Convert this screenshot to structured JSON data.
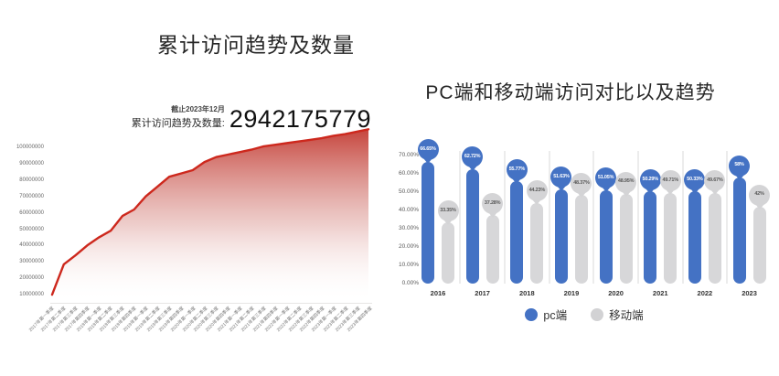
{
  "page": {
    "background": "#ffffff"
  },
  "colors": {
    "area_line": "#cd281d",
    "area_fill_top": "#c2372e",
    "pc_blue": "#4472c4",
    "mobile_gray": "#d7d7d9"
  },
  "chart_data": [
    {
      "id": "cumulative-visits",
      "type": "area",
      "title": "累计访问趋势及数量",
      "stat_caption_line1": "截止2023年12月",
      "stat_caption_line2": "累计访问趋势及数量:",
      "stat_value": "2942175779",
      "ylabel": "",
      "xlabel": "",
      "grid": false,
      "legend_position": "none",
      "ylim": [
        0,
        115000000
      ],
      "y_ticks": [
        "100000000",
        "90000000",
        "80000000",
        "70000000",
        "60000000",
        "50000000",
        "40000000",
        "30000000",
        "20000000",
        "10000000"
      ],
      "x": [
        "2017年第一季度",
        "2017年第二季度",
        "2017年第三季度",
        "2017年第四季度",
        "2018年第一季度",
        "2018年第二季度",
        "2018年第三季度",
        "2018年第四季度",
        "2019年第一季度",
        "2019年第二季度",
        "2019年第三季度",
        "2019年第四季度",
        "2020年第一季度",
        "2020年第二季度",
        "2020年第三季度",
        "2020年第四季度",
        "2021年第一季度",
        "2021年第二季度",
        "2021年第三季度",
        "2021年第四季度",
        "2022年第一季度",
        "2022年第二季度",
        "2022年第三季度",
        "2022年第四季度",
        "2023年第一季度",
        "2023年第二季度",
        "2023年第三季度",
        "2023年第四季度"
      ],
      "values": [
        10000000,
        28500000,
        34000000,
        40000000,
        45000000,
        49000000,
        58000000,
        62000000,
        70000000,
        76000000,
        82000000,
        84000000,
        86000000,
        91000000,
        94000000,
        95500000,
        97000000,
        98500000,
        100500000,
        101500000,
        102500000,
        103500000,
        104500000,
        105500000,
        107000000,
        108000000,
        109500000,
        111000000
      ]
    },
    {
      "id": "pc-vs-mobile",
      "type": "bar",
      "title": "PC端和移动端访问对比以及趋势",
      "grid": false,
      "legend_position": "bottom",
      "ylim": [
        0,
        70
      ],
      "y_ticks": [
        "70.00%",
        "60.00%",
        "50.00%",
        "40.00%",
        "30.00%",
        "20.00%",
        "10.00%",
        "0.00%"
      ],
      "categories": [
        "2016",
        "2017",
        "2018",
        "2019",
        "2020",
        "2021",
        "2022",
        "2023"
      ],
      "series": [
        {
          "name": "pc端",
          "color": "#4472c4",
          "values": [
            66.65,
            62.72,
            55.77,
            51.63,
            51.05,
            50.29,
            50.33,
            58
          ],
          "labels": [
            "66.65%",
            "62.72%",
            "55.77%",
            "51.63%",
            "51.05%",
            "50.29%",
            "50.33%",
            "58%"
          ]
        },
        {
          "name": "移动端",
          "color": "#d7d7d9",
          "values": [
            33.35,
            37.28,
            44.23,
            48.37,
            48.95,
            49.71,
            49.67,
            42
          ],
          "labels": [
            "33.35%",
            "37.28%",
            "44.23%",
            "48.37%",
            "48.95%",
            "49.71%",
            "49.67%",
            "42%"
          ]
        }
      ],
      "legend": [
        "pc端",
        "移动端"
      ]
    }
  ]
}
